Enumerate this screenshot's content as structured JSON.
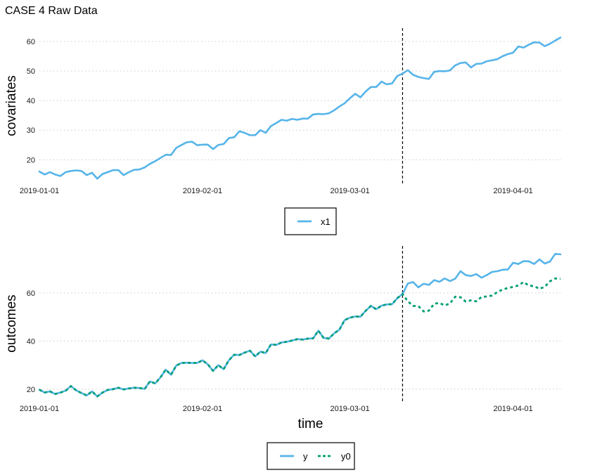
{
  "title": "CASE 4 Raw Data",
  "chart_data": [
    {
      "type": "line",
      "ylabel": "covariates",
      "xlabel": "",
      "x_ticks": [
        "2019-01-01",
        "2019-02-01",
        "2019-03-01",
        "2019-04-01"
      ],
      "y_ticks": [
        20,
        30,
        40,
        50,
        60
      ],
      "xlim": [
        "2019-01-01",
        "2019-04-10"
      ],
      "ylim": [
        12,
        64.5
      ],
      "intervention_date": "2019-03-11",
      "legend_position": "bottom",
      "grid": "horizontal-dotted",
      "series": [
        {
          "name": "x1",
          "color": "#56B4E9",
          "style": "solid",
          "start_date": "2019-01-01",
          "values": [
            16.0,
            15.0,
            15.8,
            15.0,
            14.5,
            15.8,
            16.2,
            16.4,
            16.2,
            14.8,
            15.6,
            13.6,
            15.2,
            15.8,
            16.5,
            16.5,
            14.8,
            15.8,
            16.6,
            16.7,
            17.4,
            18.6,
            19.5,
            20.6,
            21.7,
            21.6,
            24.0,
            25.0,
            25.9,
            26.1,
            24.9,
            25.1,
            25.1,
            23.6,
            25.0,
            25.3,
            27.3,
            27.6,
            29.6,
            29.1,
            28.3,
            28.3,
            30.0,
            29.1,
            31.4,
            32.4,
            33.5,
            33.2,
            33.8,
            33.5,
            33.9,
            33.9,
            35.3,
            35.5,
            35.4,
            35.7,
            36.7,
            38.0,
            39.1,
            40.8,
            42.3,
            41.1,
            43.1,
            44.6,
            44.6,
            46.4,
            45.5,
            45.8,
            48.3,
            49.1,
            50.3,
            48.7,
            48.0,
            47.6,
            47.3,
            49.7,
            50.0,
            49.9,
            50.2,
            51.9,
            52.7,
            52.9,
            51.2,
            52.4,
            52.5,
            53.3,
            53.6,
            54.0,
            55.0,
            55.7,
            56.2,
            58.3,
            57.9,
            58.9,
            59.7,
            59.6,
            58.4,
            59.2,
            60.3,
            61.3
          ]
        }
      ]
    },
    {
      "type": "line",
      "ylabel": "outcomes",
      "xlabel": "time",
      "x_ticks": [
        "2019-01-01",
        "2019-02-01",
        "2019-03-01",
        "2019-04-01"
      ],
      "y_ticks": [
        20,
        40,
        60
      ],
      "xlim": [
        "2019-01-01",
        "2019-04-10"
      ],
      "ylim": [
        15,
        79.5
      ],
      "intervention_date": "2019-03-11",
      "legend_position": "bottom",
      "grid": "horizontal-dotted",
      "series": [
        {
          "name": "y",
          "color": "#56B4E9",
          "style": "solid",
          "start_date": "2019-01-01",
          "values": [
            19.8,
            18.6,
            19.1,
            18.0,
            18.6,
            19.4,
            21.3,
            19.5,
            18.4,
            17.4,
            19.1,
            17.0,
            18.6,
            19.7,
            20.0,
            20.6,
            19.9,
            20.3,
            20.6,
            20.5,
            20.1,
            23.2,
            22.4,
            24.9,
            28.1,
            26.0,
            29.8,
            30.9,
            31.0,
            30.9,
            30.9,
            32.0,
            30.3,
            27.6,
            30.0,
            28.3,
            32.0,
            34.3,
            34.2,
            35.2,
            36.0,
            33.6,
            35.6,
            35.0,
            38.6,
            38.4,
            39.4,
            39.7,
            40.2,
            40.8,
            40.6,
            41.0,
            41.1,
            44.3,
            41.3,
            41.0,
            43.2,
            44.7,
            48.7,
            49.7,
            50.2,
            50.1,
            52.6,
            54.6,
            53.2,
            54.7,
            55.2,
            55.3,
            57.8,
            59.5,
            63.9,
            64.5,
            62.3,
            63.8,
            63.3,
            65.3,
            64.6,
            66.0,
            64.9,
            65.9,
            69.0,
            67.4,
            67.0,
            67.8,
            66.3,
            67.4,
            68.7,
            69.0,
            69.6,
            69.7,
            72.5,
            72.0,
            73.2,
            73.1,
            72.0,
            73.9,
            72.2,
            73.0,
            76.2,
            76.0
          ]
        },
        {
          "name": "y0",
          "color": "#009E73",
          "style": "dashed",
          "start_date": "2019-01-01",
          "values": [
            19.8,
            18.6,
            19.1,
            18.0,
            18.6,
            19.4,
            21.3,
            19.5,
            18.4,
            17.4,
            19.1,
            17.0,
            18.6,
            19.7,
            20.0,
            20.6,
            19.9,
            20.3,
            20.6,
            20.5,
            20.1,
            23.2,
            22.4,
            24.9,
            28.1,
            26.0,
            29.8,
            30.9,
            31.0,
            30.9,
            30.9,
            32.0,
            30.3,
            27.6,
            30.0,
            28.3,
            32.0,
            34.3,
            34.2,
            35.2,
            36.0,
            33.6,
            35.6,
            35.0,
            38.6,
            38.4,
            39.4,
            39.7,
            40.2,
            40.8,
            40.6,
            41.0,
            41.1,
            44.3,
            41.3,
            41.0,
            43.2,
            44.7,
            48.7,
            49.7,
            50.2,
            50.1,
            52.6,
            54.6,
            53.2,
            54.7,
            55.2,
            55.3,
            57.8,
            59.5,
            56.5,
            54.6,
            54.5,
            52.3,
            52.6,
            55.5,
            55.8,
            54.8,
            55.6,
            58.4,
            58.2,
            56.4,
            56.9,
            56.5,
            58.3,
            58.5,
            58.9,
            60.3,
            61.4,
            62.0,
            62.5,
            63.1,
            64.5,
            63.0,
            62.8,
            61.7,
            62.5,
            64.8,
            66.0,
            65.8
          ]
        }
      ]
    }
  ]
}
